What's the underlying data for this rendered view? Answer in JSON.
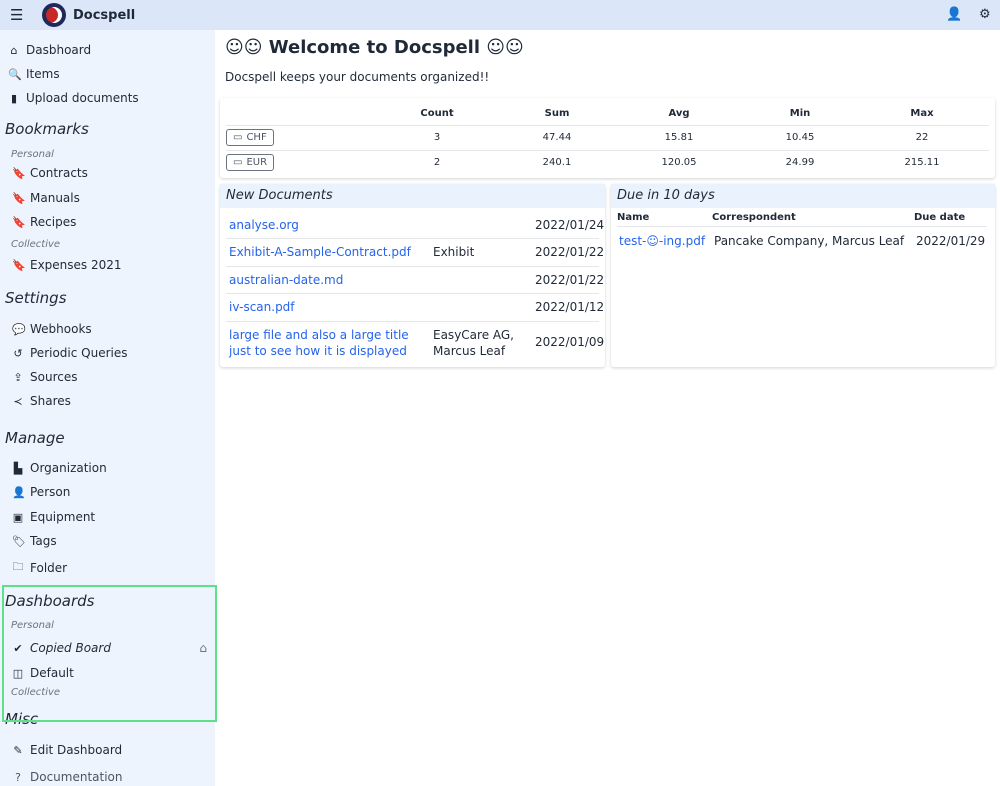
{
  "app": {
    "name": "Docspell"
  },
  "sidebar": {
    "main": [
      {
        "label": "Dasbhoard",
        "icon": "home-icon"
      },
      {
        "label": "Items",
        "icon": "search-icon"
      },
      {
        "label": "Upload documents",
        "icon": "upload-file-icon"
      }
    ],
    "bookmarks": {
      "title": "Bookmarks",
      "personal_label": "Personal",
      "personal": [
        "Contracts",
        "Manuals",
        "Recipes"
      ],
      "collective_label": "Collective",
      "collective": [
        "Expenses 2021"
      ]
    },
    "settings": {
      "title": "Settings",
      "items": [
        "Webhooks",
        "Periodic Queries",
        "Sources",
        "Shares"
      ]
    },
    "manage": {
      "title": "Manage",
      "items": [
        "Organization",
        "Person",
        "Equipment",
        "Tags",
        "Folder"
      ]
    },
    "dashboards": {
      "title": "Dashboards",
      "personal_label": "Personal",
      "items": [
        "Copied Board",
        "Default"
      ],
      "collective_label": "Collective"
    },
    "misc": {
      "title": "Misc",
      "items": [
        "Edit Dashboard",
        "Documentation"
      ]
    }
  },
  "main": {
    "title": "☺☺ Welcome to Docspell ☺☺",
    "subtitle": "Docspell keeps your documents organized!!",
    "summary": {
      "headers": [
        "Count",
        "Sum",
        "Avg",
        "Min",
        "Max"
      ],
      "rows": [
        {
          "currency": "CHF",
          "values": [
            "3",
            "47.44",
            "15.81",
            "10.45",
            "22"
          ]
        },
        {
          "currency": "EUR",
          "values": [
            "2",
            "240.1",
            "120.05",
            "24.99",
            "215.11"
          ]
        }
      ]
    },
    "new_documents": {
      "title": "New Documents",
      "rows": [
        {
          "name": "analyse.org",
          "corr": "",
          "date": "2022/01/24"
        },
        {
          "name": "Exhibit-A-Sample-Contract.pdf",
          "corr": "Exhibit",
          "date": "2022/01/22"
        },
        {
          "name": "australian-date.md",
          "corr": "",
          "date": "2022/01/22"
        },
        {
          "name": "iv-scan.pdf",
          "corr": "",
          "date": "2022/01/12"
        },
        {
          "name": "large file and also a large title just to see how it is displayed",
          "corr": "EasyCare AG, Marcus Leaf",
          "date": "2022/01/09"
        }
      ]
    },
    "due": {
      "title": "Due in 10 days",
      "headers": [
        "Name",
        "Correspondent",
        "Due date"
      ],
      "rows": [
        {
          "name": "test-☺-ing.pdf",
          "corr": "Pancake Company, Marcus Leaf",
          "date": "2022/01/29"
        }
      ]
    }
  },
  "colors": {
    "topbar": "#dbe7f9",
    "sidebar": "#eef4fd",
    "link": "#2563eb",
    "highlight": "#5ee08a"
  }
}
